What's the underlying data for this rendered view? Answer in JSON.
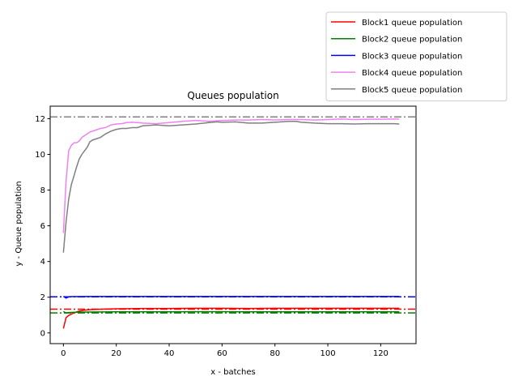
{
  "chart_data": {
    "type": "line",
    "title": "Queues population",
    "xlabel": "x - batches",
    "ylabel": "y - Queue population",
    "xlim": [
      -5,
      133.35
    ],
    "ylim": [
      -0.6,
      12.7
    ],
    "xticks": [
      "0",
      "20",
      "40",
      "60",
      "80",
      "100",
      "120"
    ],
    "yticks": [
      "0",
      "2",
      "4",
      "6",
      "8",
      "10",
      "12"
    ],
    "grid": false,
    "legend_position": "top-right, outside plot",
    "series": [
      {
        "name": "Block1 queue population",
        "color": "#ff0000",
        "reference_line": 1.33,
        "points": [
          [
            0,
            0.25
          ],
          [
            1,
            0.85
          ],
          [
            2,
            0.98
          ],
          [
            3,
            1.05
          ],
          [
            4,
            1.12
          ],
          [
            5,
            1.18
          ],
          [
            6,
            1.22
          ],
          [
            8,
            1.27
          ],
          [
            10,
            1.3
          ],
          [
            15,
            1.33
          ],
          [
            20,
            1.35
          ],
          [
            25,
            1.36
          ],
          [
            30,
            1.37
          ],
          [
            40,
            1.37
          ],
          [
            50,
            1.38
          ],
          [
            60,
            1.38
          ],
          [
            70,
            1.37
          ],
          [
            80,
            1.38
          ],
          [
            90,
            1.38
          ],
          [
            100,
            1.38
          ],
          [
            110,
            1.38
          ],
          [
            120,
            1.38
          ],
          [
            127,
            1.38
          ]
        ]
      },
      {
        "name": "Block2 queue population",
        "color": "#008000",
        "reference_line": 1.12,
        "points": [
          [
            0,
            1.2
          ],
          [
            1,
            1.12
          ],
          [
            2,
            1.14
          ],
          [
            3,
            1.15
          ],
          [
            5,
            1.16
          ],
          [
            10,
            1.17
          ],
          [
            20,
            1.18
          ],
          [
            30,
            1.18
          ],
          [
            40,
            1.18
          ],
          [
            50,
            1.19
          ],
          [
            60,
            1.19
          ],
          [
            70,
            1.18
          ],
          [
            80,
            1.18
          ],
          [
            90,
            1.18
          ],
          [
            100,
            1.18
          ],
          [
            110,
            1.18
          ],
          [
            120,
            1.18
          ],
          [
            127,
            1.18
          ]
        ]
      },
      {
        "name": "Block3 queue population",
        "color": "#0000ff",
        "reference_line": 2.02,
        "points": [
          [
            0,
            2.05
          ],
          [
            1,
            1.95
          ],
          [
            2,
            2.02
          ],
          [
            3,
            2.03
          ],
          [
            5,
            2.03
          ],
          [
            10,
            2.04
          ],
          [
            20,
            2.04
          ],
          [
            30,
            2.04
          ],
          [
            40,
            2.04
          ],
          [
            50,
            2.04
          ],
          [
            60,
            2.04
          ],
          [
            70,
            2.04
          ],
          [
            80,
            2.04
          ],
          [
            90,
            2.04
          ],
          [
            100,
            2.04
          ],
          [
            110,
            2.04
          ],
          [
            120,
            2.04
          ],
          [
            127,
            2.04
          ]
        ]
      },
      {
        "name": "Block4 queue population",
        "color": "#ee82ee",
        "reference_line": 12.1,
        "points": [
          [
            0,
            5.6
          ],
          [
            1,
            8.5
          ],
          [
            2,
            10.2
          ],
          [
            3,
            10.5
          ],
          [
            4,
            10.65
          ],
          [
            5,
            10.65
          ],
          [
            6,
            10.75
          ],
          [
            7,
            10.95
          ],
          [
            8,
            11.05
          ],
          [
            9,
            11.15
          ],
          [
            10,
            11.25
          ],
          [
            12,
            11.35
          ],
          [
            14,
            11.45
          ],
          [
            16,
            11.5
          ],
          [
            18,
            11.65
          ],
          [
            20,
            11.7
          ],
          [
            22,
            11.72
          ],
          [
            24,
            11.78
          ],
          [
            26,
            11.8
          ],
          [
            28,
            11.78
          ],
          [
            30,
            11.75
          ],
          [
            35,
            11.72
          ],
          [
            40,
            11.78
          ],
          [
            45,
            11.85
          ],
          [
            50,
            11.9
          ],
          [
            55,
            11.85
          ],
          [
            60,
            11.9
          ],
          [
            65,
            11.92
          ],
          [
            70,
            11.92
          ],
          [
            75,
            11.95
          ],
          [
            80,
            11.93
          ],
          [
            85,
            11.95
          ],
          [
            90,
            11.95
          ],
          [
            95,
            11.92
          ],
          [
            100,
            11.95
          ],
          [
            105,
            11.98
          ],
          [
            110,
            11.95
          ],
          [
            115,
            11.97
          ],
          [
            120,
            11.97
          ],
          [
            125,
            11.98
          ],
          [
            127,
            11.98
          ]
        ]
      },
      {
        "name": "Block5 queue population",
        "color": "#808080",
        "reference_line": 12.1,
        "points": [
          [
            0,
            4.5
          ],
          [
            1,
            6.2
          ],
          [
            2,
            7.5
          ],
          [
            3,
            8.3
          ],
          [
            4,
            8.8
          ],
          [
            5,
            9.3
          ],
          [
            6,
            9.75
          ],
          [
            7,
            10.0
          ],
          [
            8,
            10.2
          ],
          [
            9,
            10.4
          ],
          [
            10,
            10.7
          ],
          [
            11,
            10.8
          ],
          [
            12,
            10.85
          ],
          [
            14,
            10.95
          ],
          [
            16,
            11.15
          ],
          [
            18,
            11.3
          ],
          [
            20,
            11.4
          ],
          [
            22,
            11.45
          ],
          [
            24,
            11.45
          ],
          [
            26,
            11.5
          ],
          [
            28,
            11.5
          ],
          [
            30,
            11.6
          ],
          [
            35,
            11.65
          ],
          [
            40,
            11.6
          ],
          [
            45,
            11.65
          ],
          [
            50,
            11.7
          ],
          [
            55,
            11.78
          ],
          [
            58,
            11.82
          ],
          [
            60,
            11.8
          ],
          [
            65,
            11.82
          ],
          [
            70,
            11.75
          ],
          [
            75,
            11.75
          ],
          [
            80,
            11.8
          ],
          [
            85,
            11.85
          ],
          [
            88,
            11.85
          ],
          [
            90,
            11.8
          ],
          [
            95,
            11.75
          ],
          [
            100,
            11.72
          ],
          [
            105,
            11.72
          ],
          [
            110,
            11.7
          ],
          [
            115,
            11.72
          ],
          [
            120,
            11.72
          ],
          [
            125,
            11.72
          ],
          [
            127,
            11.7
          ]
        ]
      }
    ]
  }
}
